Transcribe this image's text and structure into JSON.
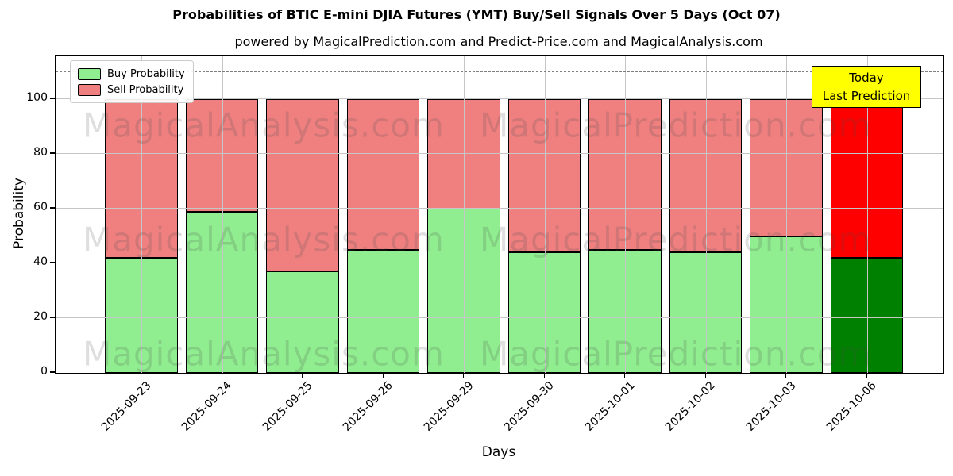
{
  "title": "Probabilities of BTIC E-mini DJIA Futures (YMT) Buy/Sell Signals Over 5 Days (Oct 07)",
  "subtitle": "powered by MagicalPrediction.com and Predict-Price.com and MagicalAnalysis.com",
  "axes": {
    "x_label": "Days",
    "y_label": "Probability",
    "y_ticks": [
      0,
      20,
      40,
      60,
      80,
      100
    ],
    "y_max": 116,
    "dashed_line_y": 110,
    "grid": true
  },
  "legend": {
    "position": "upper-left",
    "items": [
      {
        "label": "Buy Probability",
        "color": "#90ee90"
      },
      {
        "label": "Sell Probability",
        "color": "#f08080"
      }
    ]
  },
  "annotation": {
    "lines": [
      "Today",
      "Last Prediction"
    ],
    "bg_color": "#ffff00",
    "border_color": "#000000"
  },
  "watermarks": [
    "MagicalAnalysis.com",
    "MagicalPrediction.com"
  ],
  "chart_data": {
    "type": "bar",
    "stacked": true,
    "title": "Probabilities of BTIC E-mini DJIA Futures (YMT) Buy/Sell Signals Over 5 Days (Oct 07)",
    "xlabel": "Days",
    "ylabel": "Probability",
    "ylim": [
      0,
      116
    ],
    "grid": true,
    "categories": [
      "2025-09-23",
      "2025-09-24",
      "2025-09-25",
      "2025-09-26",
      "2025-09-29",
      "2025-09-30",
      "2025-10-01",
      "2025-10-02",
      "2025-10-03",
      "2025-10-06"
    ],
    "series": [
      {
        "name": "Buy Probability",
        "color": "#90ee90",
        "values": [
          42,
          59,
          37,
          45,
          60,
          44,
          45,
          44,
          50,
          42
        ]
      },
      {
        "name": "Sell Probability",
        "color": "#f08080",
        "values": [
          58,
          41,
          63,
          55,
          40,
          56,
          55,
          56,
          50,
          58
        ]
      }
    ],
    "highlight_index": 9,
    "highlight_colors": {
      "Buy Probability": "#008000",
      "Sell Probability": "#ff0000"
    },
    "edge_color": "#000000"
  }
}
